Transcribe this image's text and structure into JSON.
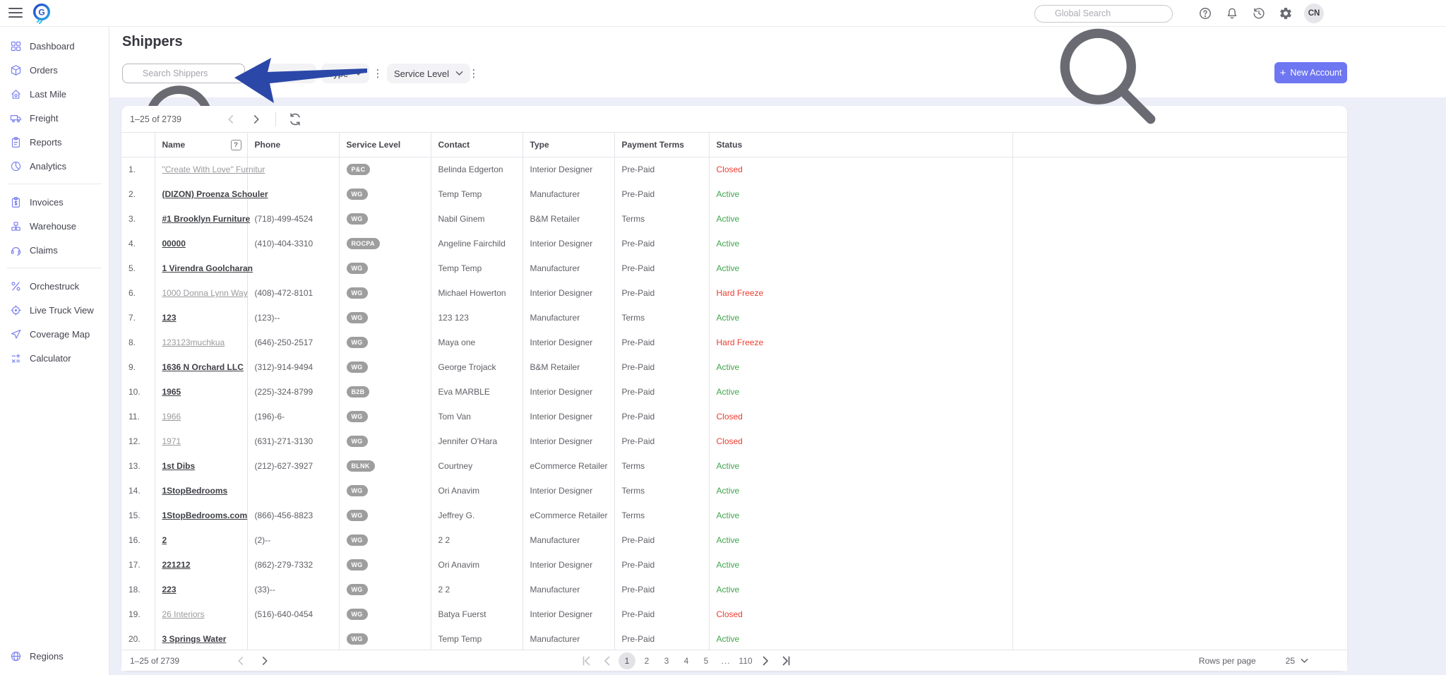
{
  "colors": {
    "accent": "#6e76f2",
    "status_active": "#3fa54b",
    "status_closed": "#ef3b30",
    "badge_bg": "#9e9e9e",
    "arrow_blue": "#2b47a8",
    "sidebar_icon": "#7b80f0"
  },
  "topbar": {
    "global_search_placeholder": "Global Search",
    "avatar_initials": "CN"
  },
  "sidebar": {
    "groups": [
      {
        "items": [
          {
            "label": "Dashboard",
            "icon": "dashboard-icon"
          },
          {
            "label": "Orders",
            "icon": "orders-icon"
          },
          {
            "label": "Last Mile",
            "icon": "last-mile-icon"
          },
          {
            "label": "Freight",
            "icon": "freight-icon"
          },
          {
            "label": "Reports",
            "icon": "reports-icon"
          },
          {
            "label": "Analytics",
            "icon": "analytics-icon"
          }
        ]
      },
      {
        "items": [
          {
            "label": "Invoices",
            "icon": "invoices-icon"
          },
          {
            "label": "Warehouse",
            "icon": "warehouse-icon"
          },
          {
            "label": "Claims",
            "icon": "claims-icon"
          }
        ]
      },
      {
        "items": [
          {
            "label": "Orchestruck",
            "icon": "orchestruck-icon"
          },
          {
            "label": "Live Truck View",
            "icon": "live-truck-icon"
          },
          {
            "label": "Coverage Map",
            "icon": "coverage-map-icon"
          },
          {
            "label": "Calculator",
            "icon": "calculator-icon"
          }
        ]
      }
    ],
    "bottom_item": {
      "label": "Regions",
      "icon": "globe-icon"
    }
  },
  "page": {
    "title": "Shippers",
    "search_placeholder": "Search Shippers",
    "filters": [
      {
        "label": "Type"
      },
      {
        "label": "Service Level"
      }
    ],
    "new_account_label": "New Account"
  },
  "toolbar": {
    "range": "1–25 of 2739"
  },
  "table": {
    "columns": [
      "Name",
      "Phone",
      "Service Level",
      "Contact",
      "Type",
      "Payment Terms",
      "Status"
    ],
    "rows": [
      {
        "n": "1.",
        "name": "\"Create With Love\" Furnitur",
        "phone": "",
        "sl": "P&C",
        "contact": "Belinda Edgerton",
        "type": "Interior Designer",
        "terms": "Pre-Paid",
        "status": "Closed",
        "ok": false
      },
      {
        "n": "2.",
        "name": "(DIZON) Proenza Schouler",
        "phone": "",
        "sl": "WG",
        "contact": "Temp Temp",
        "type": "Manufacturer",
        "terms": "Pre-Paid",
        "status": "Active",
        "ok": true
      },
      {
        "n": "3.",
        "name": "#1 Brooklyn Furniture",
        "phone": "(718)-499-4524",
        "sl": "WG",
        "contact": "Nabil Ginem",
        "type": "B&M Retailer",
        "terms": "Terms",
        "status": "Active",
        "ok": true
      },
      {
        "n": "4.",
        "name": "00000",
        "phone": "(410)-404-3310",
        "sl": "ROCPA",
        "contact": "Angeline Fairchild",
        "type": "Interior Designer",
        "terms": "Pre-Paid",
        "status": "Active",
        "ok": true
      },
      {
        "n": "5.",
        "name": "1 Virendra Goolcharan",
        "phone": "",
        "sl": "WG",
        "contact": "Temp Temp",
        "type": "Manufacturer",
        "terms": "Pre-Paid",
        "status": "Active",
        "ok": true
      },
      {
        "n": "6.",
        "name": "1000 Donna Lynn Way",
        "phone": "(408)-472-8101",
        "sl": "WG",
        "contact": "Michael Howerton",
        "type": "Interior Designer",
        "terms": "Pre-Paid",
        "status": "Hard Freeze",
        "ok": false
      },
      {
        "n": "7.",
        "name": "123",
        "phone": "(123)--",
        "sl": "WG",
        "contact": "123 123",
        "type": "Manufacturer",
        "terms": "Terms",
        "status": "Active",
        "ok": true
      },
      {
        "n": "8.",
        "name": "123123muchkua",
        "phone": "(646)-250-2517",
        "sl": "WG",
        "contact": "Maya one",
        "type": "Interior Designer",
        "terms": "Pre-Paid",
        "status": "Hard Freeze",
        "ok": false
      },
      {
        "n": "9.",
        "name": "1636 N Orchard LLC",
        "phone": "(312)-914-9494",
        "sl": "WG",
        "contact": "George Trojack",
        "type": "B&M Retailer",
        "terms": "Pre-Paid",
        "status": "Active",
        "ok": true
      },
      {
        "n": "10.",
        "name": "1965",
        "phone": "(225)-324-8799",
        "sl": "B2B",
        "contact": "Eva MARBLE",
        "type": "Interior Designer",
        "terms": "Pre-Paid",
        "status": "Active",
        "ok": true
      },
      {
        "n": "11.",
        "name": "1966",
        "phone": "(196)-6-",
        "sl": "WG",
        "contact": "Tom Van",
        "type": "Interior Designer",
        "terms": "Pre-Paid",
        "status": "Closed",
        "ok": false
      },
      {
        "n": "12.",
        "name": "1971",
        "phone": "(631)-271-3130",
        "sl": "WG",
        "contact": "Jennifer O'Hara",
        "type": "Interior Designer",
        "terms": "Pre-Paid",
        "status": "Closed",
        "ok": false
      },
      {
        "n": "13.",
        "name": "1st Dibs",
        "phone": "(212)-627-3927",
        "sl": "BLNK",
        "contact": "Courtney",
        "type": "eCommerce Retailer",
        "terms": "Terms",
        "status": "Active",
        "ok": true
      },
      {
        "n": "14.",
        "name": "1StopBedrooms",
        "phone": "",
        "sl": "WG",
        "contact": "Ori Anavim",
        "type": "Interior Designer",
        "terms": "Terms",
        "status": "Active",
        "ok": true
      },
      {
        "n": "15.",
        "name": "1StopBedrooms.com",
        "phone": "(866)-456-8823",
        "sl": "WG",
        "contact": "Jeffrey G.",
        "type": "eCommerce Retailer",
        "terms": "Terms",
        "status": "Active",
        "ok": true
      },
      {
        "n": "16.",
        "name": "2",
        "phone": "(2)--",
        "sl": "WG",
        "contact": "2 2",
        "type": "Manufacturer",
        "terms": "Pre-Paid",
        "status": "Active",
        "ok": true
      },
      {
        "n": "17.",
        "name": "221212",
        "phone": "(862)-279-7332",
        "sl": "WG",
        "contact": "Ori Anavim",
        "type": "Interior Designer",
        "terms": "Pre-Paid",
        "status": "Active",
        "ok": true
      },
      {
        "n": "18.",
        "name": "223",
        "phone": "(33)--",
        "sl": "WG",
        "contact": "2 2",
        "type": "Manufacturer",
        "terms": "Pre-Paid",
        "status": "Active",
        "ok": true
      },
      {
        "n": "19.",
        "name": "26 Interiors",
        "phone": "(516)-640-0454",
        "sl": "WG",
        "contact": "Batya Fuerst",
        "type": "Interior Designer",
        "terms": "Pre-Paid",
        "status": "Closed",
        "ok": false
      },
      {
        "n": "20.",
        "name": "3 Springs Water",
        "phone": "",
        "sl": "WG",
        "contact": "Temp Temp",
        "type": "Manufacturer",
        "terms": "Pre-Paid",
        "status": "Active",
        "ok": true
      }
    ]
  },
  "footer": {
    "range": "1–25 of 2739",
    "pages": [
      "1",
      "2",
      "3",
      "4",
      "5",
      "...",
      "110"
    ],
    "current_page": "1",
    "rows_per_page_label": "Rows per page",
    "rows_per_page_value": "25"
  }
}
